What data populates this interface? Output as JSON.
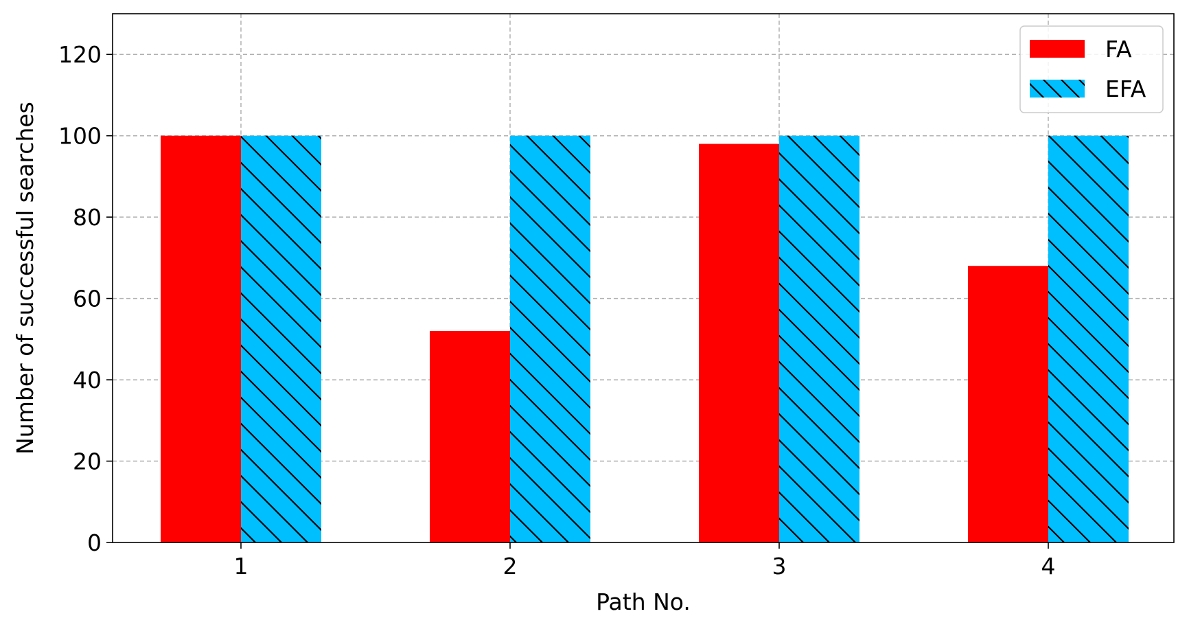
{
  "chart_data": {
    "type": "bar",
    "categories": [
      "1",
      "2",
      "3",
      "4"
    ],
    "series": [
      {
        "name": "FA",
        "values": [
          100,
          52,
          98,
          68
        ],
        "color": "#ff0000",
        "hatch": "none"
      },
      {
        "name": "EFA",
        "values": [
          100,
          100,
          100,
          100
        ],
        "color": "#00bfff",
        "hatch": "backslash"
      }
    ],
    "xlabel": "Path No.",
    "ylabel": "Number of successful searches",
    "ylim": [
      0,
      130
    ],
    "yticks": [
      "0",
      "20",
      "40",
      "60",
      "80",
      "100",
      "120"
    ],
    "grid": true,
    "legend_position": "top-right"
  }
}
